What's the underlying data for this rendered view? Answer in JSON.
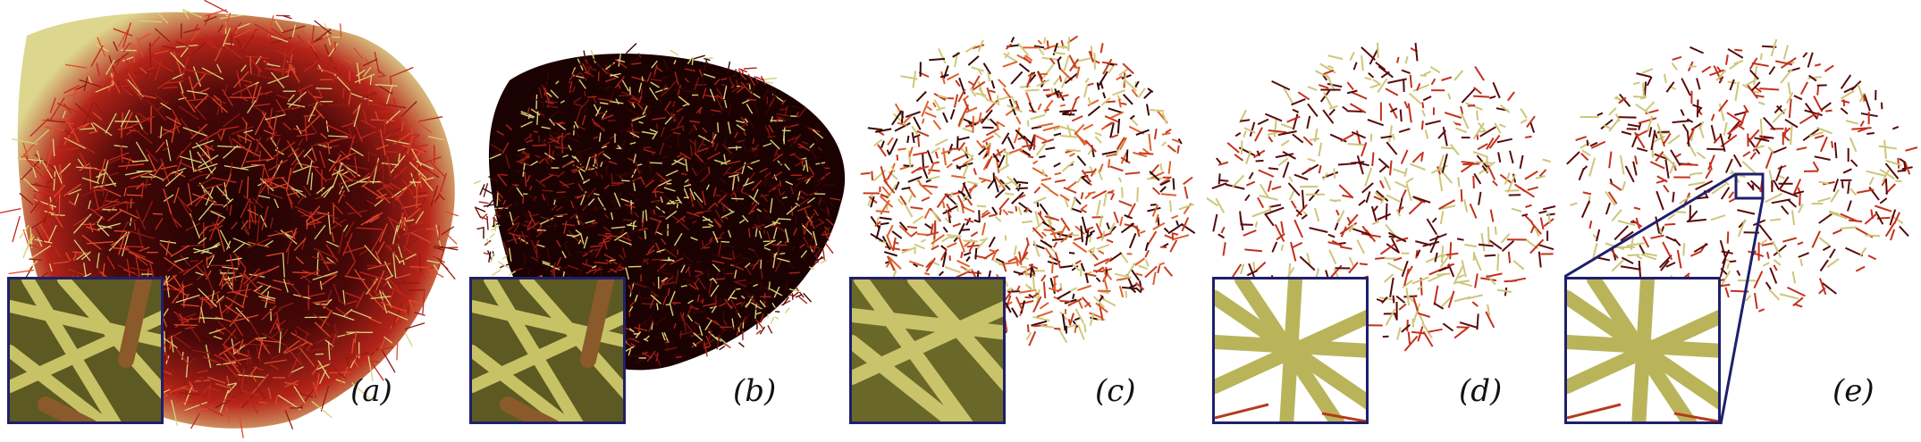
{
  "figure": {
    "panels": [
      {
        "id": "a",
        "label": "(a)",
        "description_colors": {
          "dense": "#2a0505",
          "mid": "#c2261a",
          "tip": "#d8d27a"
        }
      },
      {
        "id": "b",
        "label": "(b)",
        "description_colors": {
          "dense": "#1e0303",
          "mid": "#b0231a",
          "tip": "#d8d27a"
        }
      },
      {
        "id": "c",
        "label": "(c)",
        "description_colors": {
          "dense": "#3b0808",
          "mid": "#c53a1e",
          "tip": "#cfc97a"
        }
      },
      {
        "id": "d",
        "label": "(d)",
        "description_colors": {
          "dense": "#5a0a0a",
          "mid": "#c4301c",
          "tip": "#cdc67a"
        }
      },
      {
        "id": "e",
        "label": "(e)",
        "description_colors": {
          "dense": "#5a0a0a",
          "mid": "#c4301c",
          "tip": "#cdc67a"
        }
      }
    ],
    "inset_border_color": "#1f1f6b",
    "tube_color": "#b9b45a"
  }
}
